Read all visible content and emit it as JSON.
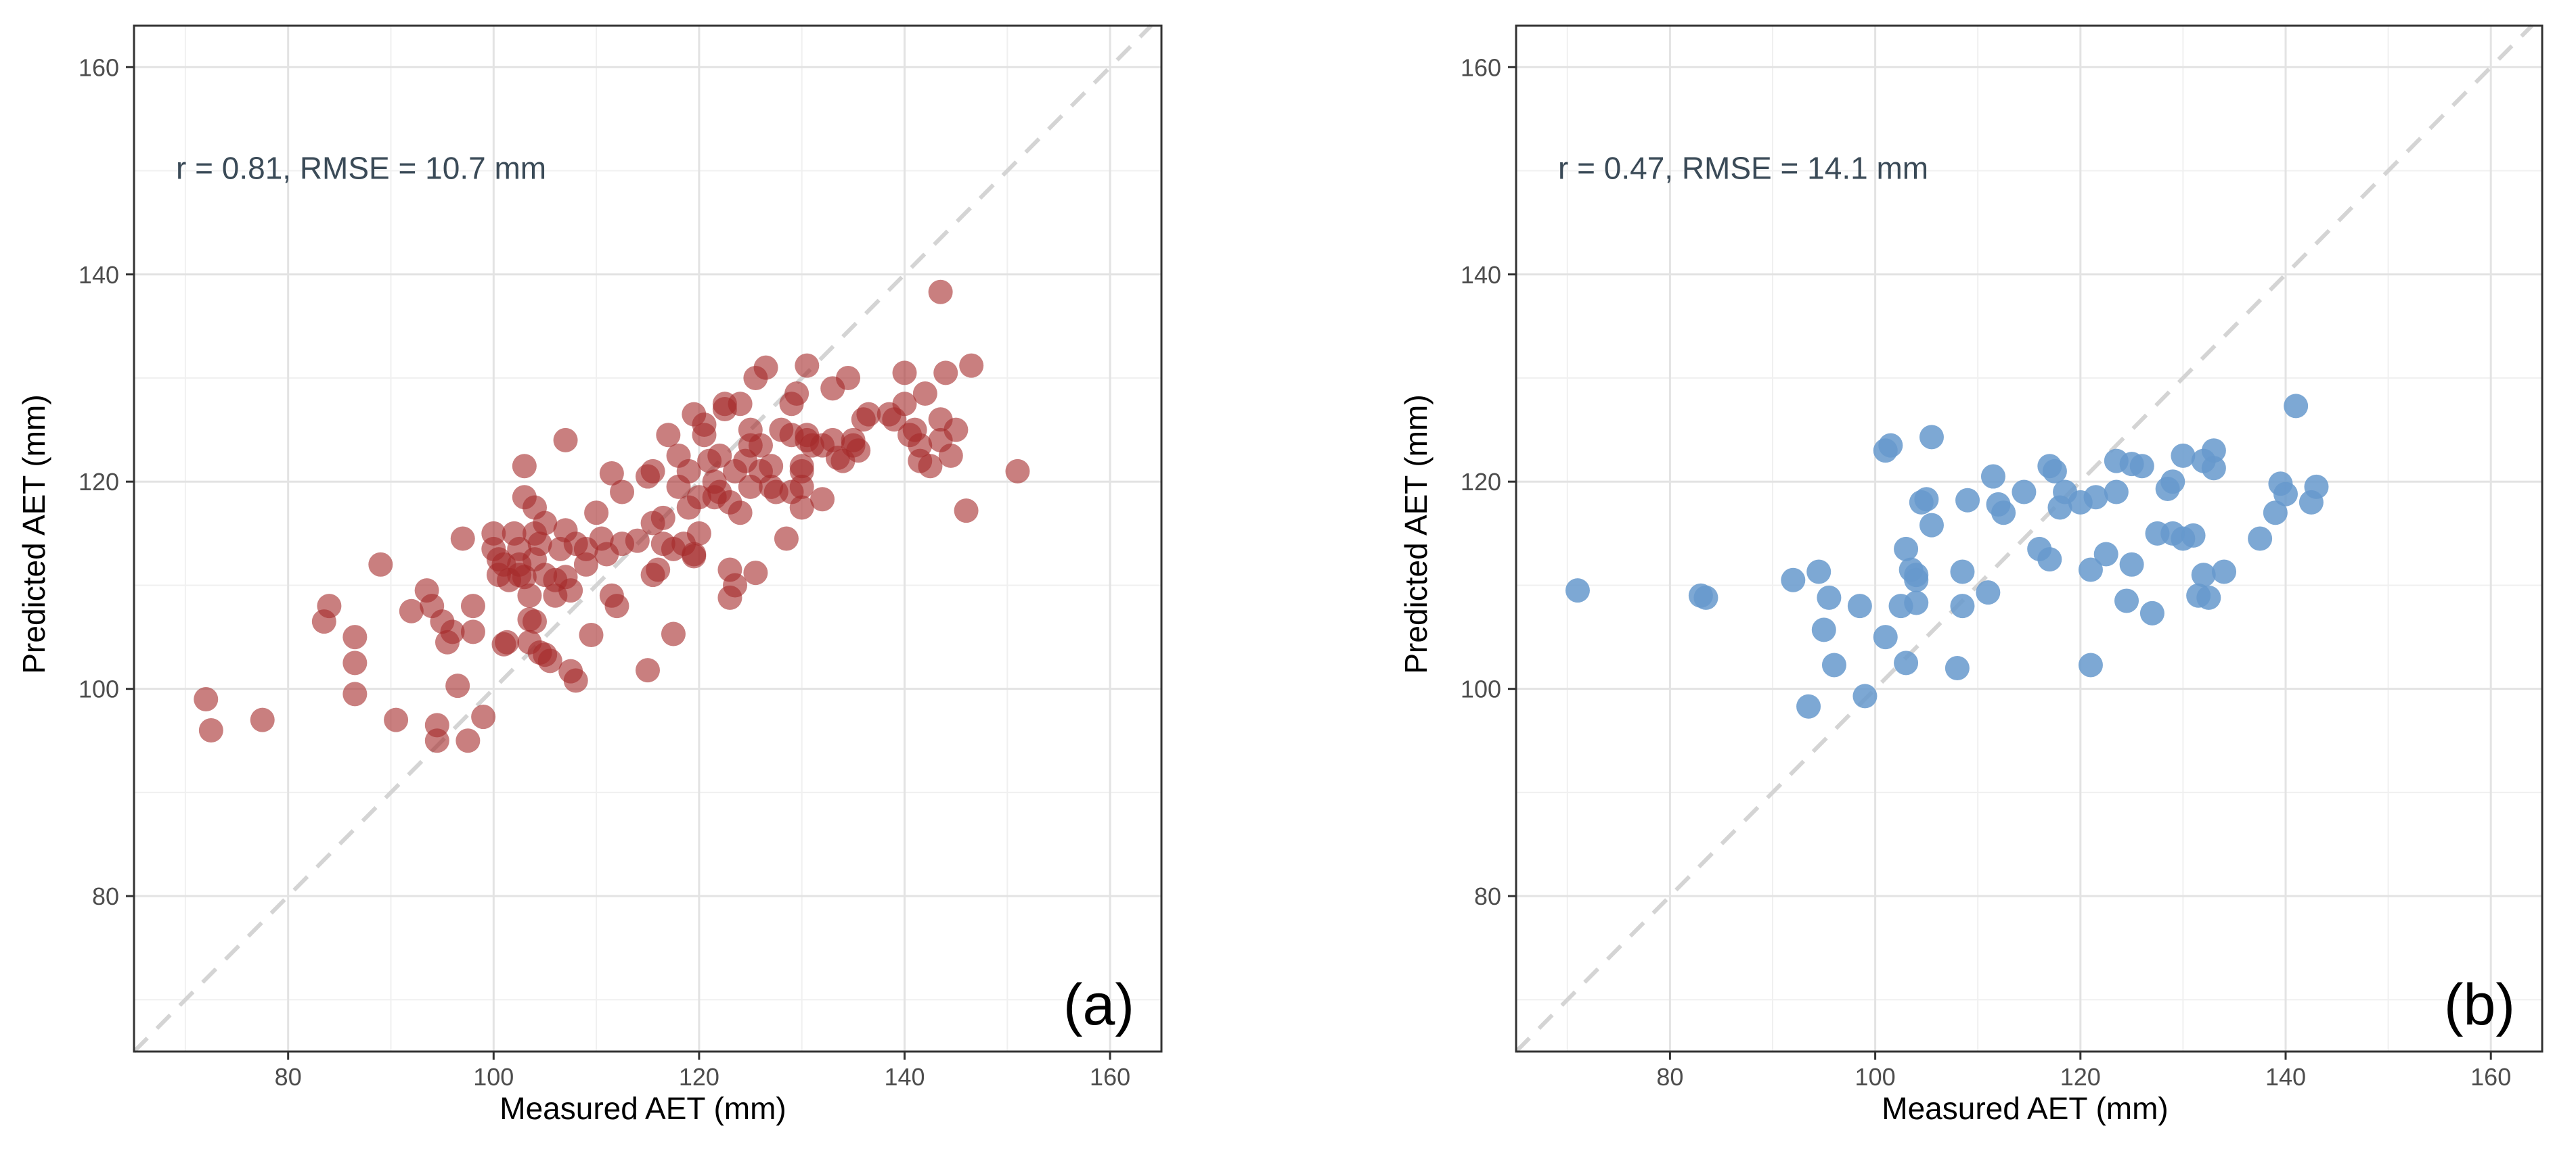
{
  "chart_data": [
    {
      "type": "scatter",
      "panel_label": "(a)",
      "annotation": "r = 0.81, RMSE = 10.7 mm",
      "xlabel": "Measured AET (mm)",
      "ylabel": "Predicted AET (mm)",
      "xlim": [
        65,
        165
      ],
      "ylim": [
        65,
        164
      ],
      "xticks": [
        80,
        100,
        120,
        140,
        160
      ],
      "yticks": [
        80,
        100,
        120,
        140,
        160
      ],
      "grid": true,
      "reference_line": "1:1 dashed",
      "point_color": "#a52a2a",
      "points": [
        [
          72,
          99
        ],
        [
          72.5,
          96
        ],
        [
          77.5,
          97
        ],
        [
          83.5,
          106.5
        ],
        [
          84,
          108
        ],
        [
          86.5,
          105
        ],
        [
          86.5,
          102.5
        ],
        [
          86.5,
          99.5
        ],
        [
          89,
          112
        ],
        [
          90.5,
          97
        ],
        [
          92,
          107.5
        ],
        [
          93.5,
          109.5
        ],
        [
          94,
          108
        ],
        [
          94.5,
          96.5
        ],
        [
          94.5,
          95
        ],
        [
          95,
          106.5
        ],
        [
          95.5,
          104.5
        ],
        [
          96,
          105.5
        ],
        [
          96.5,
          100.3
        ],
        [
          97,
          114.5
        ],
        [
          97.5,
          95
        ],
        [
          98,
          105.5
        ],
        [
          98,
          108
        ],
        [
          99,
          97.3
        ],
        [
          100,
          115
        ],
        [
          100,
          113.5
        ],
        [
          100.5,
          112.5
        ],
        [
          100.5,
          111
        ],
        [
          101,
          104.3
        ],
        [
          101,
          112
        ],
        [
          101.3,
          104.5
        ],
        [
          101.5,
          110.5
        ],
        [
          102,
          115
        ],
        [
          102.5,
          113.5
        ],
        [
          102.5,
          112
        ],
        [
          102.5,
          111
        ],
        [
          103,
          118.5
        ],
        [
          103,
          121.5
        ],
        [
          103,
          110.8
        ],
        [
          103.5,
          109
        ],
        [
          103.5,
          106.7
        ],
        [
          103.5,
          104.5
        ],
        [
          104,
          117.5
        ],
        [
          104,
          115
        ],
        [
          104,
          112.5
        ],
        [
          104,
          106.5
        ],
        [
          104.5,
          103.5
        ],
        [
          104.5,
          114
        ],
        [
          105,
          111
        ],
        [
          105,
          116
        ],
        [
          105,
          103.3
        ],
        [
          105.5,
          102.7
        ],
        [
          106,
          109
        ],
        [
          106,
          110.5
        ],
        [
          106.5,
          113.5
        ],
        [
          107,
          124
        ],
        [
          107,
          115.3
        ],
        [
          107,
          110.8
        ],
        [
          107.5,
          109.5
        ],
        [
          107.5,
          101.7
        ],
        [
          108,
          114
        ],
        [
          108,
          100.8
        ],
        [
          109,
          112
        ],
        [
          109,
          113.5
        ],
        [
          109.5,
          105.2
        ],
        [
          110,
          117
        ],
        [
          110.5,
          114.5
        ],
        [
          111,
          113
        ],
        [
          111.5,
          120.8
        ],
        [
          111.5,
          109
        ],
        [
          112,
          108
        ],
        [
          112.5,
          114
        ],
        [
          112.5,
          119
        ],
        [
          114,
          114.3
        ],
        [
          115,
          120.5
        ],
        [
          115,
          101.8
        ],
        [
          115.5,
          121
        ],
        [
          115.5,
          116
        ],
        [
          115.5,
          111
        ],
        [
          116,
          111.5
        ],
        [
          116.5,
          116.5
        ],
        [
          116.5,
          114
        ],
        [
          117,
          124.5
        ],
        [
          117.5,
          113.5
        ],
        [
          117.5,
          105.3
        ],
        [
          118,
          122.5
        ],
        [
          118,
          119.5
        ],
        [
          118.5,
          114
        ],
        [
          119,
          121
        ],
        [
          119,
          117.5
        ],
        [
          119.5,
          126.5
        ],
        [
          119.5,
          113
        ],
        [
          119.5,
          112.8
        ],
        [
          120,
          118.5
        ],
        [
          120,
          115
        ],
        [
          120.5,
          125.5
        ],
        [
          120.5,
          124.5
        ],
        [
          121,
          122
        ],
        [
          121.5,
          120
        ],
        [
          121.5,
          118.5
        ],
        [
          122,
          119
        ],
        [
          122,
          122.5
        ],
        [
          122.5,
          127
        ],
        [
          122.5,
          127.5
        ],
        [
          123,
          108.8
        ],
        [
          123,
          111.5
        ],
        [
          123,
          118
        ],
        [
          123.5,
          121
        ],
        [
          123.5,
          110
        ],
        [
          124,
          127.5
        ],
        [
          124,
          117
        ],
        [
          124.5,
          122
        ],
        [
          125,
          125
        ],
        [
          125,
          123.5
        ],
        [
          125,
          119.5
        ],
        [
          125.5,
          130
        ],
        [
          125.5,
          111.2
        ],
        [
          126,
          123.5
        ],
        [
          126,
          121
        ],
        [
          126.5,
          131
        ],
        [
          127,
          119.5
        ],
        [
          127,
          121.5
        ],
        [
          127.5,
          119
        ],
        [
          128,
          125
        ],
        [
          128.5,
          114.5
        ],
        [
          129,
          127.5
        ],
        [
          129,
          124.5
        ],
        [
          129,
          119
        ],
        [
          129.5,
          128.5
        ],
        [
          130,
          121.5
        ],
        [
          130,
          121
        ],
        [
          130,
          117.5
        ],
        [
          130,
          119.5
        ],
        [
          130.5,
          131.2
        ],
        [
          130.5,
          124.5
        ],
        [
          130.5,
          124
        ],
        [
          131,
          123.5
        ],
        [
          132,
          123.5
        ],
        [
          132,
          118.3
        ],
        [
          133,
          129
        ],
        [
          133,
          124
        ],
        [
          133.5,
          122.3
        ],
        [
          134,
          122
        ],
        [
          134.5,
          130
        ],
        [
          135,
          123.5
        ],
        [
          135,
          124
        ],
        [
          135.5,
          123
        ],
        [
          136,
          126
        ],
        [
          136.5,
          126.5
        ],
        [
          138.5,
          126.5
        ],
        [
          139,
          126
        ],
        [
          140,
          130.5
        ],
        [
          140,
          127.5
        ],
        [
          140.5,
          124.5
        ],
        [
          141,
          125
        ],
        [
          141.5,
          123.5
        ],
        [
          141.5,
          122
        ],
        [
          142,
          128.5
        ],
        [
          142.5,
          121.5
        ],
        [
          143.5,
          138.3
        ],
        [
          143.5,
          124
        ],
        [
          143.5,
          126
        ],
        [
          144,
          130.5
        ],
        [
          144.5,
          122.5
        ],
        [
          145,
          125
        ],
        [
          146,
          117.2
        ],
        [
          146.5,
          131.2
        ],
        [
          151,
          121
        ]
      ]
    },
    {
      "type": "scatter",
      "panel_label": "(b)",
      "annotation": "r = 0.47, RMSE = 14.1 mm",
      "xlabel": "Measured AET (mm)",
      "ylabel": "Predicted AET (mm)",
      "xlim": [
        65,
        165
      ],
      "ylim": [
        65,
        164
      ],
      "xticks": [
        80,
        100,
        120,
        140,
        160
      ],
      "yticks": [
        80,
        100,
        120,
        140,
        160
      ],
      "grid": true,
      "reference_line": "1:1 dashed",
      "point_color": "#6699cc",
      "points": [
        [
          71,
          109.5
        ],
        [
          83,
          109
        ],
        [
          83.5,
          108.8
        ],
        [
          92,
          110.5
        ],
        [
          93.5,
          98.3
        ],
        [
          94.5,
          111.3
        ],
        [
          95,
          105.7
        ],
        [
          95.5,
          108.8
        ],
        [
          96,
          102.3
        ],
        [
          98.5,
          108
        ],
        [
          99,
          99.3
        ],
        [
          101,
          105
        ],
        [
          101,
          123
        ],
        [
          101.5,
          123.5
        ],
        [
          102.5,
          108
        ],
        [
          103,
          113.5
        ],
        [
          103,
          102.5
        ],
        [
          103.5,
          111.5
        ],
        [
          104,
          110.5
        ],
        [
          104,
          108.3
        ],
        [
          104,
          111
        ],
        [
          104.5,
          118
        ],
        [
          105,
          118.3
        ],
        [
          105.5,
          115.8
        ],
        [
          105.5,
          124.3
        ],
        [
          108,
          102
        ],
        [
          108.5,
          111.3
        ],
        [
          108.5,
          108
        ],
        [
          109,
          118.2
        ],
        [
          111,
          109.3
        ],
        [
          111.5,
          120.5
        ],
        [
          112,
          117.8
        ],
        [
          112.5,
          117
        ],
        [
          114.5,
          119
        ],
        [
          116,
          113.5
        ],
        [
          117,
          121.5
        ],
        [
          117,
          112.5
        ],
        [
          117.5,
          121
        ],
        [
          118,
          117.5
        ],
        [
          118.5,
          119
        ],
        [
          120,
          118
        ],
        [
          121,
          102.3
        ],
        [
          121,
          111.5
        ],
        [
          121.5,
          118.5
        ],
        [
          122.5,
          113
        ],
        [
          123.5,
          119
        ],
        [
          123.5,
          122
        ],
        [
          124.5,
          108.5
        ],
        [
          125,
          112
        ],
        [
          125,
          121.7
        ],
        [
          126,
          121.5
        ],
        [
          127,
          107.3
        ],
        [
          127.5,
          115
        ],
        [
          128.5,
          119.3
        ],
        [
          129,
          115
        ],
        [
          129,
          120
        ],
        [
          130,
          122.5
        ],
        [
          130,
          114.5
        ],
        [
          131,
          114.8
        ],
        [
          131.5,
          109
        ],
        [
          132,
          111
        ],
        [
          132,
          122
        ],
        [
          132.5,
          108.8
        ],
        [
          133,
          123
        ],
        [
          133,
          121.3
        ],
        [
          134,
          111.3
        ],
        [
          137.5,
          114.5
        ],
        [
          139,
          117
        ],
        [
          139.5,
          119.8
        ],
        [
          140,
          118.8
        ],
        [
          141,
          127.3
        ],
        [
          142.5,
          118
        ],
        [
          143,
          119.5
        ]
      ]
    }
  ]
}
